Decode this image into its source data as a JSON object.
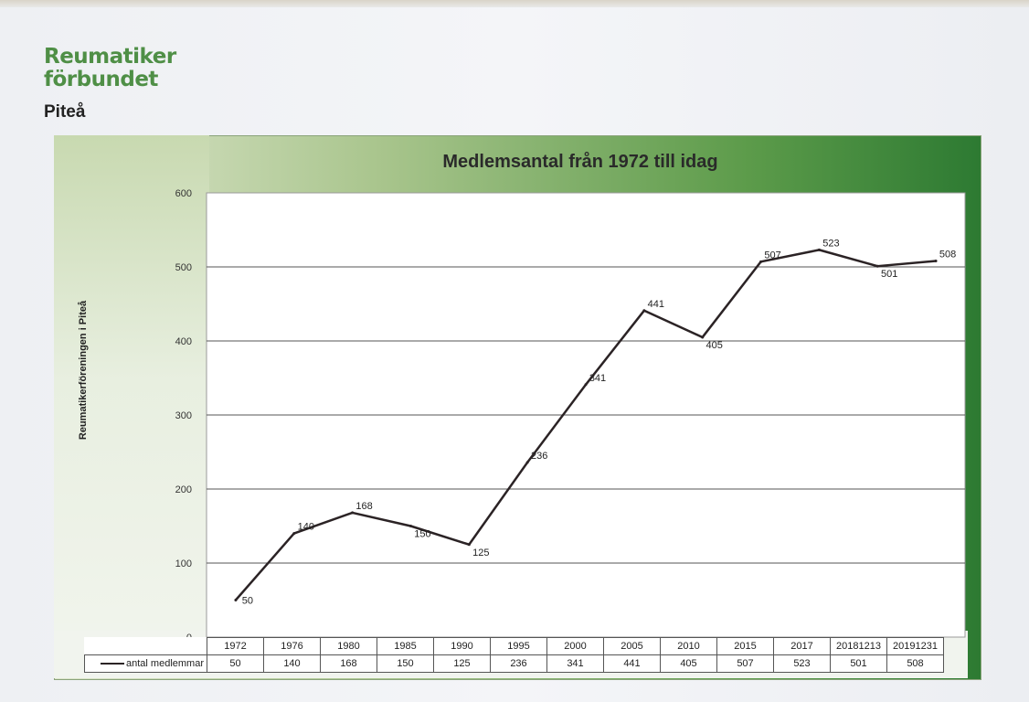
{
  "org": {
    "logo_line1": "Reumatiker",
    "logo_line2": "förbundet",
    "subtitle": "Piteå"
  },
  "chart_data": {
    "type": "line",
    "title": "Medlemsantal från 1972 till idag",
    "xlabel": "",
    "ylabel": "Reumatikerföreningen i Piteå",
    "ylim": [
      0,
      600
    ],
    "yticks": [
      0,
      100,
      200,
      300,
      400,
      500,
      600
    ],
    "grid": true,
    "categories": [
      "1972",
      "1976",
      "1980",
      "1985",
      "1990",
      "1995",
      "2000",
      "2005",
      "2010",
      "2015",
      "2017",
      "20181213",
      "20191231"
    ],
    "series": [
      {
        "name": "antal medlemmar",
        "color": "#2b2325",
        "values": [
          50,
          140,
          168,
          150,
          125,
          236,
          341,
          441,
          405,
          507,
          523,
          501,
          508
        ]
      }
    ],
    "data_table": true
  }
}
